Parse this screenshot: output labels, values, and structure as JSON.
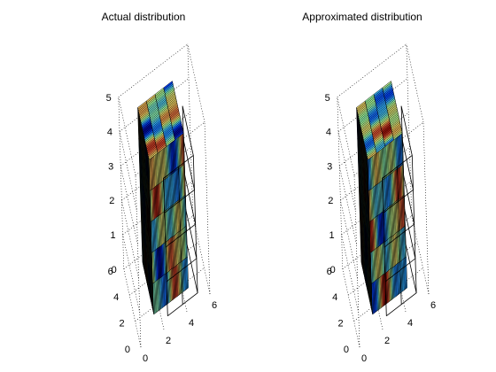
{
  "chart_data": [
    {
      "type": "3d-slice",
      "title": "Actual distribution",
      "x_ticks": [
        "0",
        "2",
        "4",
        "6"
      ],
      "y_ticks": [
        "0",
        "2",
        "4",
        "6"
      ],
      "z_ticks": [
        "0",
        "1",
        "2",
        "3",
        "4",
        "5"
      ],
      "xlim": [
        0,
        6
      ],
      "ylim": [
        0,
        6
      ],
      "zlim": [
        0,
        5
      ],
      "grid": true,
      "colormap": "jet"
    },
    {
      "type": "3d-slice",
      "title": "Approximated distribution",
      "x_ticks": [
        "0",
        "2",
        "4",
        "6"
      ],
      "y_ticks": [
        "0",
        "2",
        "4",
        "6"
      ],
      "z_ticks": [
        "0",
        "1",
        "2",
        "3",
        "4",
        "5"
      ],
      "xlim": [
        0,
        6
      ],
      "ylim": [
        0,
        6
      ],
      "zlim": [
        0,
        5
      ],
      "grid": true,
      "colormap": "jet"
    }
  ],
  "colors": {
    "jet_stops": [
      "#00008f",
      "#0040ff",
      "#30b0ff",
      "#a0ffa0",
      "#f0d060",
      "#e05030",
      "#900000"
    ]
  }
}
